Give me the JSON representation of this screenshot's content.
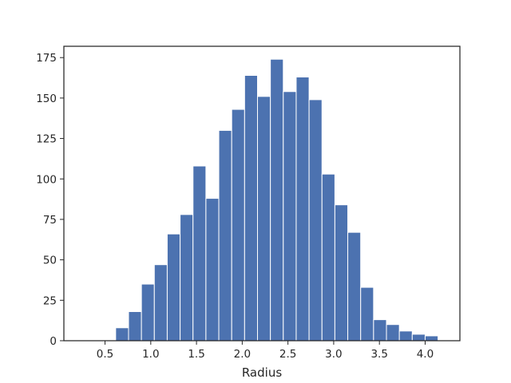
{
  "chart_data": {
    "type": "bar",
    "subtype": "histogram",
    "title": "",
    "xlabel": "Radius",
    "ylabel": "",
    "xlim": [
      0.05,
      4.38
    ],
    "ylim": [
      0,
      182
    ],
    "xticks": [
      0.5,
      1.0,
      1.5,
      2.0,
      2.5,
      3.0,
      3.5,
      4.0
    ],
    "xtick_labels": [
      "0.5",
      "1.0",
      "1.5",
      "2.0",
      "2.5",
      "3.0",
      "3.5",
      "4.0"
    ],
    "yticks": [
      0,
      25,
      50,
      75,
      100,
      125,
      150,
      175
    ],
    "ytick_labels": [
      "0",
      "25",
      "50",
      "75",
      "100",
      "125",
      "150",
      "175"
    ],
    "bar_color": "#4c72b0",
    "bar_edge_color": "#ffffff",
    "grid": false,
    "bins": [
      {
        "x0": 0.193,
        "x1": 0.334,
        "count": 0
      },
      {
        "x0": 0.334,
        "x1": 0.475,
        "count": 0
      },
      {
        "x0": 0.475,
        "x1": 0.616,
        "count": 0
      },
      {
        "x0": 0.616,
        "x1": 0.757,
        "count": 8
      },
      {
        "x0": 0.757,
        "x1": 0.898,
        "count": 18
      },
      {
        "x0": 0.898,
        "x1": 1.039,
        "count": 35
      },
      {
        "x0": 1.039,
        "x1": 1.18,
        "count": 47
      },
      {
        "x0": 1.18,
        "x1": 1.321,
        "count": 66
      },
      {
        "x0": 1.321,
        "x1": 1.462,
        "count": 78
      },
      {
        "x0": 1.462,
        "x1": 1.603,
        "count": 108
      },
      {
        "x0": 1.603,
        "x1": 1.744,
        "count": 88
      },
      {
        "x0": 1.744,
        "x1": 1.885,
        "count": 130
      },
      {
        "x0": 1.885,
        "x1": 2.026,
        "count": 143
      },
      {
        "x0": 2.026,
        "x1": 2.167,
        "count": 164
      },
      {
        "x0": 2.167,
        "x1": 2.308,
        "count": 151
      },
      {
        "x0": 2.308,
        "x1": 2.449,
        "count": 174
      },
      {
        "x0": 2.449,
        "x1": 2.59,
        "count": 154
      },
      {
        "x0": 2.59,
        "x1": 2.731,
        "count": 163
      },
      {
        "x0": 2.731,
        "x1": 2.872,
        "count": 149
      },
      {
        "x0": 2.872,
        "x1": 3.013,
        "count": 103
      },
      {
        "x0": 3.013,
        "x1": 3.154,
        "count": 84
      },
      {
        "x0": 3.154,
        "x1": 3.295,
        "count": 67
      },
      {
        "x0": 3.295,
        "x1": 3.436,
        "count": 33
      },
      {
        "x0": 3.436,
        "x1": 3.577,
        "count": 13
      },
      {
        "x0": 3.577,
        "x1": 3.718,
        "count": 10
      },
      {
        "x0": 3.718,
        "x1": 3.859,
        "count": 6
      },
      {
        "x0": 3.859,
        "x1": 4.0,
        "count": 4
      },
      {
        "x0": 4.0,
        "x1": 4.141,
        "count": 3
      }
    ]
  }
}
